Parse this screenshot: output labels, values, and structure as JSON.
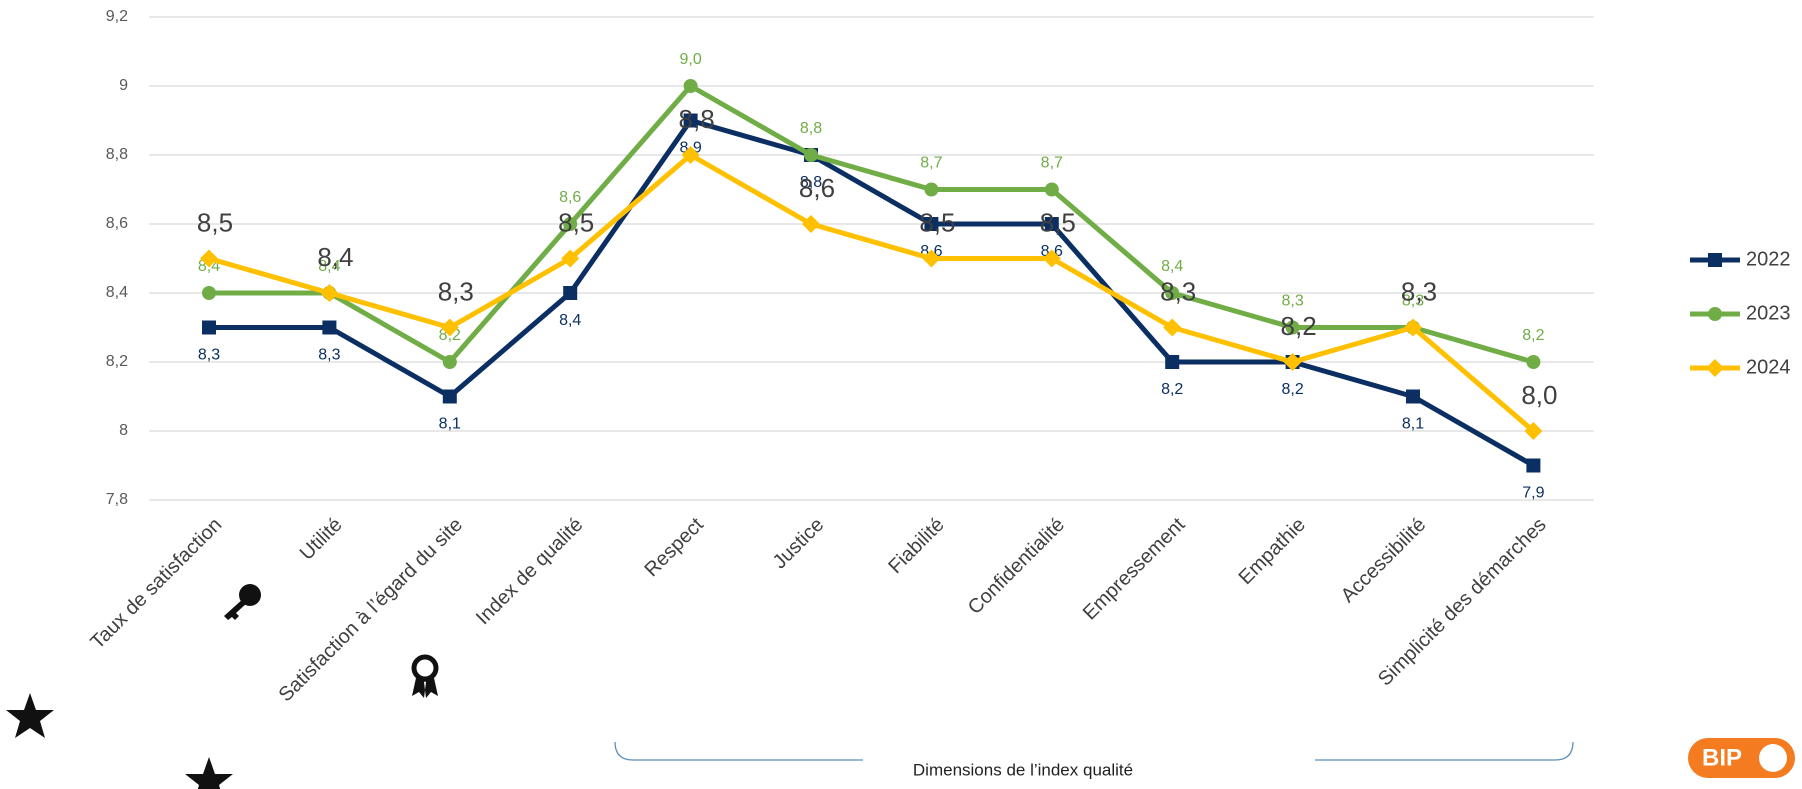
{
  "chart_data": {
    "type": "line",
    "categories": [
      "Taux de satisfaction",
      "Utilité",
      "Satisfaction à l’égard du site",
      "Index de qualité",
      "Respect",
      "Justice",
      "Fiabilité",
      "Confidentialité",
      "Empressement",
      "Empathie",
      "Accessibilité",
      "Simplicité des démarches"
    ],
    "series": [
      {
        "name": "2022",
        "color": "#0b2f63",
        "marker": "square",
        "values": [
          8.3,
          8.3,
          8.1,
          8.4,
          8.9,
          8.8,
          8.6,
          8.6,
          8.2,
          8.2,
          8.1,
          7.9
        ],
        "value_labels": [
          "8,3",
          "8,3",
          "8,1",
          "8,4",
          "8,9",
          "8,8",
          "8,6",
          "8,6",
          "8,2",
          "8,2",
          "8,1",
          "7,9"
        ]
      },
      {
        "name": "2023",
        "color": "#70ad47",
        "marker": "circle",
        "values": [
          8.4,
          8.4,
          8.2,
          8.6,
          9.0,
          8.8,
          8.7,
          8.7,
          8.4,
          8.3,
          8.3,
          8.2
        ],
        "value_labels": [
          "8,4",
          "8,4",
          "8,2",
          "8,6",
          "9,0",
          "8,8",
          "8,7",
          "8,7",
          "8,4",
          "8,3",
          "8,3",
          "8,2"
        ]
      },
      {
        "name": "2024",
        "color": "#ffc000",
        "marker": "diamond",
        "values": [
          8.5,
          8.4,
          8.3,
          8.5,
          8.8,
          8.6,
          8.5,
          8.5,
          8.3,
          8.2,
          8.3,
          8.0
        ],
        "value_labels": [
          "8,5",
          "8,4",
          "8,3",
          "8,5",
          "8,8",
          "8,6",
          "8,5",
          "8,5",
          "8,3",
          "8,2",
          "8,3",
          "8,0"
        ]
      }
    ],
    "ylim": [
      7.8,
      9.2
    ],
    "yticks": [
      {
        "value": 7.8,
        "label": "7,8"
      },
      8,
      {
        "value": 8.2,
        "label": "8,2"
      },
      {
        "value": 8.4,
        "label": "8,4"
      },
      {
        "value": 8.6,
        "label": "8,6"
      },
      {
        "value": 8.8,
        "label": "8,8"
      },
      9,
      {
        "value": 9.2,
        "label": "9,2"
      }
    ],
    "grid": true,
    "legend": "right",
    "annotation": "Dimensions de l’index qualité",
    "logo": "BIP"
  }
}
